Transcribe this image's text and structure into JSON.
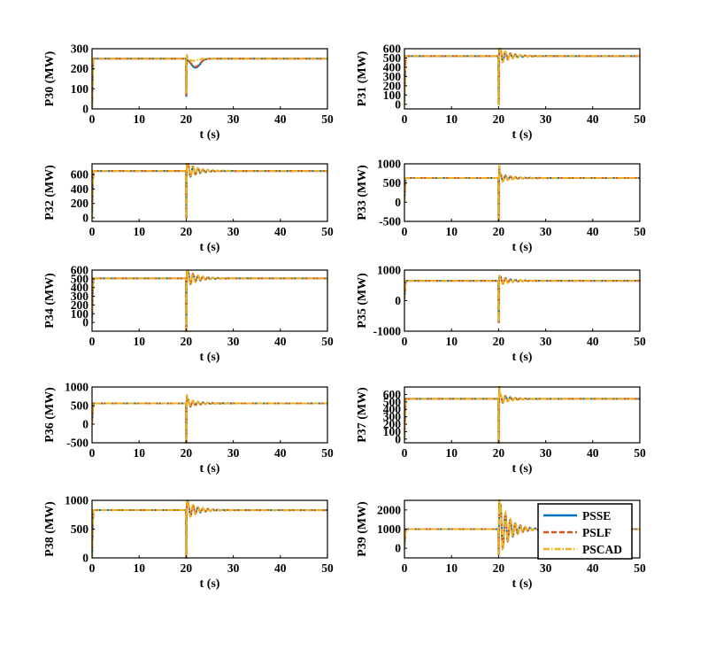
{
  "chart_data": [
    {
      "type": "line",
      "ylabel": "P30 (MW)",
      "xlabel": "t (s)",
      "xlim": [
        0,
        50
      ],
      "ylim": [
        0,
        300
      ],
      "yticks": [
        0,
        100,
        200,
        300
      ],
      "xticks": [
        0,
        10,
        20,
        30,
        40,
        50
      ],
      "series": [
        {
          "name": "PSSE",
          "color": "#0072BD",
          "style": "solid",
          "steady": 250,
          "fault_min": 65,
          "fault_max": 262,
          "dip": 205,
          "dip_time": 22
        },
        {
          "name": "PSLF",
          "color": "#D95319",
          "style": "dash",
          "steady": 250,
          "fault_min": 70,
          "fault_max": 262,
          "dip": 210,
          "dip_time": 22
        },
        {
          "name": "PSCAD",
          "color": "#EDB120",
          "style": "dashdot",
          "steady": 250,
          "fault_min": 80,
          "fault_max": 268,
          "dip": 240,
          "dip_time": 21.5
        }
      ]
    },
    {
      "type": "line",
      "ylabel": "P31 (MW)",
      "xlabel": "t (s)",
      "xlim": [
        0,
        50
      ],
      "ylim": [
        -50,
        600
      ],
      "yticks": [
        0,
        100,
        200,
        300,
        400,
        500,
        600
      ],
      "xticks": [
        0,
        10,
        20,
        30,
        40,
        50
      ],
      "series": [
        {
          "name": "PSSE",
          "color": "#0072BD",
          "style": "solid",
          "steady": 520,
          "fault_min": 0,
          "osc_amp": 80
        },
        {
          "name": "PSLF",
          "color": "#D95319",
          "style": "dash",
          "steady": 520,
          "fault_min": 0,
          "osc_amp": 80
        },
        {
          "name": "PSCAD",
          "color": "#EDB120",
          "style": "dashdot",
          "steady": 520,
          "fault_min": 0,
          "osc_amp": 90
        }
      ]
    },
    {
      "type": "line",
      "ylabel": "P32 (MW)",
      "xlabel": "t (s)",
      "xlim": [
        0,
        50
      ],
      "ylim": [
        -50,
        750
      ],
      "yticks": [
        0,
        200,
        400,
        600
      ],
      "xticks": [
        0,
        10,
        20,
        30,
        40,
        50
      ],
      "series": [
        {
          "name": "PSSE",
          "color": "#0072BD",
          "style": "solid",
          "steady": 650,
          "fault_min": 0,
          "osc_amp": 110
        },
        {
          "name": "PSLF",
          "color": "#D95319",
          "style": "dash",
          "steady": 650,
          "fault_min": 0,
          "osc_amp": 110
        },
        {
          "name": "PSCAD",
          "color": "#EDB120",
          "style": "dashdot",
          "steady": 650,
          "fault_min": 0,
          "osc_amp": 120
        }
      ]
    },
    {
      "type": "line",
      "ylabel": "P33 (MW)",
      "xlabel": "t (s)",
      "xlim": [
        0,
        50
      ],
      "ylim": [
        -500,
        1000
      ],
      "yticks": [
        -500,
        0,
        500,
        1000
      ],
      "xticks": [
        0,
        10,
        20,
        30,
        40,
        50
      ],
      "series": [
        {
          "name": "PSSE",
          "color": "#0072BD",
          "style": "solid",
          "steady": 630,
          "fault_min": -470,
          "fault_max": 920,
          "osc_amp": 120
        },
        {
          "name": "PSLF",
          "color": "#D95319",
          "style": "dash",
          "steady": 630,
          "fault_min": -470,
          "fault_max": 920,
          "osc_amp": 120
        },
        {
          "name": "PSCAD",
          "color": "#EDB120",
          "style": "dashdot",
          "steady": 630,
          "fault_min": -470,
          "fault_max": 950,
          "osc_amp": 130
        }
      ]
    },
    {
      "type": "line",
      "ylabel": "P34 (MW)",
      "xlabel": "t (s)",
      "xlim": [
        0,
        50
      ],
      "ylim": [
        -100,
        600
      ],
      "yticks": [
        0,
        100,
        200,
        300,
        400,
        500,
        600
      ],
      "xticks": [
        0,
        10,
        20,
        30,
        40,
        50
      ],
      "series": [
        {
          "name": "PSSE",
          "color": "#0072BD",
          "style": "solid",
          "steady": 505,
          "fault_min": -100,
          "osc_amp": 90
        },
        {
          "name": "PSLF",
          "color": "#D95319",
          "style": "dash",
          "steady": 505,
          "fault_min": -100,
          "osc_amp": 90
        },
        {
          "name": "PSCAD",
          "color": "#EDB120",
          "style": "dashdot",
          "steady": 505,
          "fault_min": -100,
          "osc_amp": 95
        }
      ]
    },
    {
      "type": "line",
      "ylabel": "P35 (MW)",
      "xlabel": "t (s)",
      "xlim": [
        0,
        50
      ],
      "ylim": [
        -1000,
        1000
      ],
      "yticks": [
        -1000,
        0,
        1000
      ],
      "xticks": [
        0,
        10,
        20,
        30,
        40,
        50
      ],
      "series": [
        {
          "name": "PSSE",
          "color": "#0072BD",
          "style": "solid",
          "steady": 650,
          "fault_min": -700,
          "osc_amp": 150
        },
        {
          "name": "PSLF",
          "color": "#D95319",
          "style": "dash",
          "steady": 650,
          "fault_min": -700,
          "osc_amp": 150
        },
        {
          "name": "PSCAD",
          "color": "#EDB120",
          "style": "dashdot",
          "steady": 650,
          "fault_min": -700,
          "osc_amp": 160
        }
      ]
    },
    {
      "type": "line",
      "ylabel": "P36 (MW)",
      "xlabel": "t (s)",
      "xlim": [
        0,
        50
      ],
      "ylim": [
        -500,
        1000
      ],
      "yticks": [
        -500,
        0,
        500,
        1000
      ],
      "xticks": [
        0,
        10,
        20,
        30,
        40,
        50
      ],
      "series": [
        {
          "name": "PSSE",
          "color": "#0072BD",
          "style": "solid",
          "steady": 560,
          "fault_min": -500,
          "fault_max": 760,
          "osc_amp": 120
        },
        {
          "name": "PSLF",
          "color": "#D95319",
          "style": "dash",
          "steady": 560,
          "fault_min": -500,
          "fault_max": 760,
          "osc_amp": 120
        },
        {
          "name": "PSCAD",
          "color": "#EDB120",
          "style": "dashdot",
          "steady": 560,
          "fault_min": -500,
          "fault_max": 780,
          "osc_amp": 130
        }
      ]
    },
    {
      "type": "line",
      "ylabel": "P37 (MW)",
      "xlabel": "t (s)",
      "xlim": [
        0,
        50
      ],
      "ylim": [
        -50,
        700
      ],
      "yticks": [
        0,
        100,
        200,
        300,
        400,
        500,
        600
      ],
      "xticks": [
        0,
        10,
        20,
        30,
        40,
        50
      ],
      "series": [
        {
          "name": "PSSE",
          "color": "#0072BD",
          "style": "solid",
          "steady": 540,
          "fault_min": -50,
          "fault_max": 690,
          "osc_amp": 70
        },
        {
          "name": "PSLF",
          "color": "#D95319",
          "style": "dash",
          "steady": 540,
          "fault_min": -50,
          "fault_max": 690,
          "osc_amp": 70
        },
        {
          "name": "PSCAD",
          "color": "#EDB120",
          "style": "dashdot",
          "steady": 540,
          "fault_min": -50,
          "fault_max": 700,
          "osc_amp": 75
        }
      ]
    },
    {
      "type": "line",
      "ylabel": "P38 (MW)",
      "xlabel": "t (s)",
      "xlim": [
        0,
        50
      ],
      "ylim": [
        0,
        1000
      ],
      "yticks": [
        0,
        500,
        1000
      ],
      "xticks": [
        0,
        10,
        20,
        30,
        40,
        50
      ],
      "series": [
        {
          "name": "PSSE",
          "color": "#0072BD",
          "style": "solid",
          "steady": 830,
          "fault_min": 0,
          "osc_amp": 150
        },
        {
          "name": "PSLF",
          "color": "#D95319",
          "style": "dash",
          "steady": 830,
          "fault_min": 0,
          "osc_amp": 150
        },
        {
          "name": "PSCAD",
          "color": "#EDB120",
          "style": "dashdot",
          "steady": 830,
          "fault_min": 0,
          "osc_amp": 160
        }
      ]
    },
    {
      "type": "line",
      "ylabel": "P39 (MW)",
      "xlabel": "t (s)",
      "xlim": [
        0,
        50
      ],
      "ylim": [
        -500,
        2500
      ],
      "yticks": [
        0,
        1000,
        2000
      ],
      "xticks": [
        0,
        10,
        20,
        30,
        40,
        50
      ],
      "series": [
        {
          "name": "PSSE",
          "color": "#0072BD",
          "style": "solid",
          "steady": 1000,
          "fault_min": -300,
          "osc_amp": 1400
        },
        {
          "name": "PSLF",
          "color": "#D95319",
          "style": "dash",
          "steady": 1000,
          "fault_min": -300,
          "osc_amp": 1400
        },
        {
          "name": "PSCAD",
          "color": "#EDB120",
          "style": "dashdot",
          "steady": 1000,
          "fault_min": -300,
          "osc_amp": 1500
        }
      ]
    }
  ],
  "legend": {
    "placement": "inside last subplot, right",
    "entries": [
      {
        "label": "PSSE",
        "color": "#0072BD",
        "style": "solid"
      },
      {
        "label": "PSLF",
        "color": "#D95319",
        "style": "dash"
      },
      {
        "label": "PSCAD",
        "color": "#EDB120",
        "style": "dashdot"
      }
    ]
  }
}
